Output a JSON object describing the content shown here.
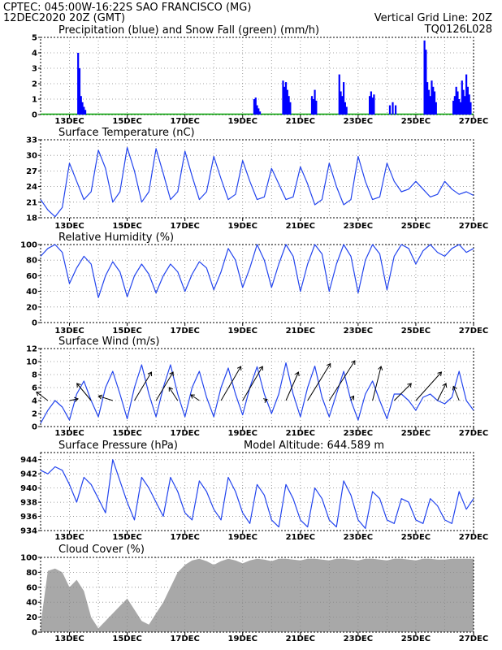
{
  "header": {
    "line1": "CPTEC:  045:00W-16:22S  SAO FRANCISCO (MG)",
    "line2": "12DEC2020 20Z (GMT)",
    "grid_note": "Vertical Grid Line: 20Z",
    "code": "TQ0126L028"
  },
  "colors": {
    "header": "#ff8000",
    "title": "#ff00aa",
    "precip": "#0000ff",
    "snow": "#00a000",
    "line": "#2244ee",
    "cloud": "#a8a8a8",
    "arrow": "#000000"
  },
  "date_labels": [
    "13DEC",
    "15DEC",
    "17DEC",
    "19DEC",
    "21DEC",
    "23DEC",
    "25DEC",
    "27DEC"
  ],
  "chart_data": [
    {
      "type": "bar",
      "id": "precip",
      "title": "Precipitation (blue) and Snow Fall (green) (mm/h)",
      "ylim": [
        0,
        5
      ],
      "yticks": [
        0,
        1,
        2,
        3,
        4,
        5
      ],
      "x_unit": "days since 12DEC2020 12Z",
      "x": [
        1.3,
        1.35,
        1.4,
        1.45,
        1.5,
        1.55,
        7.4,
        7.45,
        7.5,
        7.55,
        7.6,
        8.4,
        8.45,
        8.5,
        8.55,
        8.6,
        8.65,
        9.4,
        9.45,
        9.5,
        9.55,
        10.35,
        10.4,
        10.45,
        10.5,
        10.55,
        10.6,
        11.4,
        11.45,
        11.5,
        11.55,
        12.1,
        12.2,
        12.3,
        13.3,
        13.35,
        13.4,
        13.45,
        13.5,
        13.55,
        13.6,
        13.65,
        13.7,
        14.3,
        14.35,
        14.4,
        14.45,
        14.5,
        14.55,
        14.6,
        14.65,
        14.7,
        14.75,
        14.8,
        14.85,
        14.9
      ],
      "values": [
        4.0,
        3.0,
        1.2,
        0.8,
        0.5,
        0.3,
        1.0,
        1.1,
        0.6,
        0.4,
        0.2,
        2.2,
        1.8,
        2.1,
        1.6,
        1.2,
        0.8,
        1.2,
        1.0,
        1.6,
        0.9,
        2.6,
        1.5,
        1.2,
        2.1,
        0.8,
        0.5,
        1.2,
        1.5,
        1.1,
        1.3,
        0.6,
        0.8,
        0.6,
        4.8,
        4.2,
        2.1,
        1.6,
        1.2,
        2.2,
        1.8,
        1.5,
        0.8,
        0.9,
        1.2,
        1.8,
        1.5,
        1.0,
        0.8,
        2.2,
        1.6,
        1.2,
        2.6,
        1.8,
        1.3,
        0.8
      ],
      "snow": 0
    },
    {
      "type": "line",
      "id": "temp",
      "title": "Surface Temperature (nC)",
      "ylim": [
        18,
        33
      ],
      "yticks": [
        18,
        21,
        24,
        27,
        30,
        33
      ],
      "x_unit": "days since 12DEC2020 12Z",
      "x": [
        0,
        0.25,
        0.5,
        0.75,
        1,
        1.25,
        1.5,
        1.75,
        2,
        2.25,
        2.5,
        2.75,
        3,
        3.25,
        3.5,
        3.75,
        4,
        4.25,
        4.5,
        4.75,
        5,
        5.25,
        5.5,
        5.75,
        6,
        6.25,
        6.5,
        6.75,
        7,
        7.25,
        7.5,
        7.75,
        8,
        8.25,
        8.5,
        8.75,
        9,
        9.25,
        9.5,
        9.75,
        10,
        10.25,
        10.5,
        10.75,
        11,
        11.25,
        11.5,
        11.75,
        12,
        12.25,
        12.5,
        12.75,
        13,
        13.25,
        13.5,
        13.75,
        14,
        14.25,
        14.5,
        14.75,
        15
      ],
      "values": [
        21.5,
        19.5,
        18.2,
        20,
        28.5,
        25,
        21.5,
        23,
        31,
        27.5,
        21,
        23,
        31.5,
        27,
        21,
        23,
        31.3,
        26.5,
        21.5,
        23,
        30.8,
        26,
        21.5,
        23,
        29.8,
        25.5,
        21.5,
        22.5,
        29,
        25,
        21.5,
        22,
        27.5,
        24.5,
        21.5,
        22,
        27.8,
        24.5,
        20.5,
        21.5,
        28.5,
        24,
        20.5,
        21.5,
        29.8,
        25,
        21.5,
        22,
        28.5,
        25,
        23,
        23.5,
        25,
        23.5,
        22,
        22.5,
        25,
        23.5,
        22.5,
        23,
        22.3
      ]
    },
    {
      "type": "line",
      "id": "rh",
      "title": "Relative Humidity (%)",
      "ylim": [
        0,
        100
      ],
      "yticks": [
        0,
        20,
        40,
        60,
        80,
        100
      ],
      "x_unit": "days since 12DEC2020 12Z",
      "x": [
        0,
        0.25,
        0.5,
        0.75,
        1,
        1.25,
        1.5,
        1.75,
        2,
        2.25,
        2.5,
        2.75,
        3,
        3.25,
        3.5,
        3.75,
        4,
        4.25,
        4.5,
        4.75,
        5,
        5.25,
        5.5,
        5.75,
        6,
        6.25,
        6.5,
        6.75,
        7,
        7.25,
        7.5,
        7.75,
        8,
        8.25,
        8.5,
        8.75,
        9,
        9.25,
        9.5,
        9.75,
        10,
        10.25,
        10.5,
        10.75,
        11,
        11.25,
        11.5,
        11.75,
        12,
        12.25,
        12.5,
        12.75,
        13,
        13.25,
        13.5,
        13.75,
        14,
        14.25,
        14.5,
        14.75,
        15
      ],
      "values": [
        85,
        95,
        100,
        90,
        50,
        70,
        85,
        75,
        32,
        60,
        78,
        65,
        33,
        60,
        75,
        62,
        38,
        60,
        75,
        65,
        40,
        62,
        78,
        70,
        42,
        65,
        95,
        80,
        45,
        70,
        100,
        80,
        45,
        75,
        100,
        85,
        40,
        75,
        100,
        88,
        40,
        75,
        100,
        85,
        38,
        80,
        100,
        88,
        42,
        85,
        100,
        95,
        75,
        92,
        100,
        90,
        85,
        95,
        100,
        90,
        95
      ]
    },
    {
      "type": "line",
      "id": "wind",
      "title": "Surface Wind (m/s)",
      "ylim": [
        0,
        12
      ],
      "yticks": [
        0,
        2,
        4,
        6,
        8,
        10,
        12
      ],
      "x_unit": "days since 12DEC2020 12Z",
      "x": [
        0,
        0.25,
        0.5,
        0.75,
        1,
        1.25,
        1.5,
        1.75,
        2,
        2.25,
        2.5,
        2.75,
        3,
        3.25,
        3.5,
        3.75,
        4,
        4.25,
        4.5,
        4.75,
        5,
        5.25,
        5.5,
        5.75,
        6,
        6.25,
        6.5,
        6.75,
        7,
        7.25,
        7.5,
        7.75,
        8,
        8.25,
        8.5,
        8.75,
        9,
        9.25,
        9.5,
        9.75,
        10,
        10.25,
        10.5,
        10.75,
        11,
        11.25,
        11.5,
        11.75,
        12,
        12.25,
        12.5,
        12.75,
        13,
        13.25,
        13.5,
        13.75,
        14,
        14.25,
        14.5,
        14.75,
        15
      ],
      "values": [
        0.5,
        2.5,
        4,
        3,
        1,
        5,
        7,
        4,
        1.5,
        6,
        8.5,
        5,
        1.2,
        6,
        9.5,
        5,
        1.5,
        6,
        9.5,
        5,
        1.5,
        6,
        8.5,
        4.5,
        1.5,
        6,
        9,
        5,
        1.8,
        6,
        9.2,
        5,
        2,
        5,
        9.8,
        5,
        1.5,
        6,
        9.3,
        4.5,
        1.5,
        5,
        8.5,
        4,
        1,
        5,
        7,
        4,
        1.2,
        5,
        5,
        4,
        2.5,
        4.5,
        5,
        4,
        3.5,
        4.5,
        8.5,
        4,
        2.5
      ],
      "barbs": {
        "x": [
          0.25,
          1,
          1.75,
          2.5,
          3.25,
          4,
          4.75,
          5.5,
          6.25,
          7,
          7.75,
          8.5,
          9.25,
          10,
          10.75,
          11.5,
          12.25,
          13,
          13.75,
          14.5
        ],
        "u": [
          -2,
          1.5,
          -2.5,
          -2.5,
          3,
          3,
          -1.5,
          -1.5,
          3.5,
          3.5,
          0.5,
          2.2,
          4,
          4.5,
          0.5,
          1.5,
          3,
          4.5,
          1.5,
          -1
        ],
        "v": [
          1.5,
          0.3,
          3,
          0.8,
          5,
          5,
          2.3,
          1,
          6,
          6,
          0.2,
          5,
          6.5,
          7,
          0.8,
          6,
          3,
          5,
          3,
          2.5
        ]
      }
    },
    {
      "type": "line",
      "id": "pres",
      "title": "Surface Pressure (hPa)",
      "altitude_label": "Model Altitude: 644.589 m",
      "ylim": [
        934,
        945
      ],
      "yticks": [
        934,
        936,
        938,
        940,
        942,
        944
      ],
      "x_unit": "days since 12DEC2020 12Z",
      "x": [
        0,
        0.25,
        0.5,
        0.75,
        1,
        1.25,
        1.5,
        1.75,
        2,
        2.25,
        2.5,
        2.75,
        3,
        3.25,
        3.5,
        3.75,
        4,
        4.25,
        4.5,
        4.75,
        5,
        5.25,
        5.5,
        5.75,
        6,
        6.25,
        6.5,
        6.75,
        7,
        7.25,
        7.5,
        7.75,
        8,
        8.25,
        8.5,
        8.75,
        9,
        9.25,
        9.5,
        9.75,
        10,
        10.25,
        10.5,
        10.75,
        11,
        11.25,
        11.5,
        11.75,
        12,
        12.25,
        12.5,
        12.75,
        13,
        13.25,
        13.5,
        13.75,
        14,
        14.25,
        14.5,
        14.75,
        15
      ],
      "values": [
        942.5,
        942,
        943,
        942.5,
        940.5,
        938,
        941.5,
        940.5,
        938.5,
        936.5,
        944,
        941,
        938,
        935.5,
        941.5,
        940,
        938,
        936,
        941.5,
        939.5,
        936.5,
        935.5,
        941,
        939.5,
        937,
        935.5,
        941.5,
        939.5,
        936.5,
        935,
        940.5,
        939,
        935.5,
        934.5,
        940.5,
        938.5,
        935.5,
        934.5,
        940,
        938.5,
        935.5,
        934.5,
        941,
        939,
        935.5,
        934.3,
        939.5,
        938.5,
        935.5,
        935,
        938.5,
        938,
        935.5,
        935,
        938.5,
        937.5,
        935.5,
        935,
        939.5,
        937,
        938.5
      ]
    },
    {
      "type": "area",
      "id": "cloud",
      "title": "Cloud Cover (%)",
      "ylim": [
        0,
        100
      ],
      "yticks": [
        0,
        20,
        40,
        60,
        80,
        100
      ],
      "x_unit": "days since 12DEC2020 12Z",
      "x": [
        0,
        0.25,
        0.5,
        0.75,
        1,
        1.25,
        1.5,
        1.75,
        2,
        2.25,
        2.5,
        2.75,
        3,
        3.25,
        3.5,
        3.75,
        4,
        4.25,
        4.5,
        4.75,
        5,
        5.25,
        5.5,
        5.75,
        6,
        6.25,
        6.5,
        6.75,
        7,
        7.25,
        7.5,
        7.75,
        8,
        8.25,
        8.5,
        8.75,
        9,
        9.25,
        9.5,
        9.75,
        10,
        10.25,
        10.5,
        10.75,
        11,
        11.25,
        11.5,
        11.75,
        12,
        12.25,
        12.5,
        12.75,
        13,
        13.25,
        13.5,
        13.75,
        14,
        14.25,
        14.5,
        14.75,
        15
      ],
      "values": [
        10,
        82,
        85,
        80,
        60,
        70,
        55,
        20,
        5,
        15,
        25,
        35,
        45,
        30,
        15,
        10,
        25,
        40,
        60,
        80,
        90,
        96,
        98,
        95,
        90,
        95,
        98,
        96,
        92,
        96,
        98,
        97,
        95,
        98,
        98,
        97,
        96,
        98,
        98,
        97,
        96,
        98,
        98,
        97,
        96,
        98,
        98,
        97,
        96,
        98,
        98,
        97,
        96,
        98,
        98,
        97,
        97,
        98,
        98,
        98,
        98
      ]
    }
  ]
}
